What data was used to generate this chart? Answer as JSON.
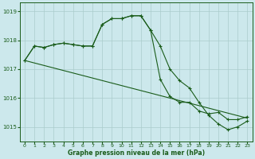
{
  "xlabel": "Graphe pression niveau de la mer (hPa)",
  "bg_color": "#cce8ec",
  "grid_color": "#aacccc",
  "line_color": "#1a5c1a",
  "ylim": [
    1014.5,
    1019.3
  ],
  "xlim": [
    -0.5,
    23.5
  ],
  "yticks": [
    1015,
    1016,
    1017,
    1018,
    1019
  ],
  "xticks": [
    0,
    1,
    2,
    3,
    4,
    5,
    6,
    7,
    8,
    9,
    10,
    11,
    12,
    13,
    14,
    15,
    16,
    17,
    18,
    19,
    20,
    21,
    22,
    23
  ],
  "series1": [
    1017.3,
    1017.8,
    1017.75,
    1017.85,
    1017.9,
    1017.85,
    1017.8,
    1017.8,
    1018.55,
    1018.75,
    1018.75,
    1018.85,
    1018.85,
    1018.35,
    1017.8,
    1017.0,
    1016.6,
    1016.35,
    1015.85,
    1015.4,
    1015.1,
    1014.9,
    1015.0,
    1015.2
  ],
  "series2": [
    1017.3,
    1017.8,
    1017.75,
    1017.85,
    1017.9,
    1017.85,
    1017.8,
    1017.8,
    1018.55,
    1018.75,
    1018.75,
    1018.85,
    1018.85,
    1018.35,
    1016.65,
    1016.05,
    1015.85,
    1015.85,
    1015.55,
    1015.45,
    1015.5,
    1015.25,
    1015.25,
    1015.35
  ],
  "trend_x": [
    0,
    23
  ],
  "trend_y": [
    1017.3,
    1015.3
  ]
}
